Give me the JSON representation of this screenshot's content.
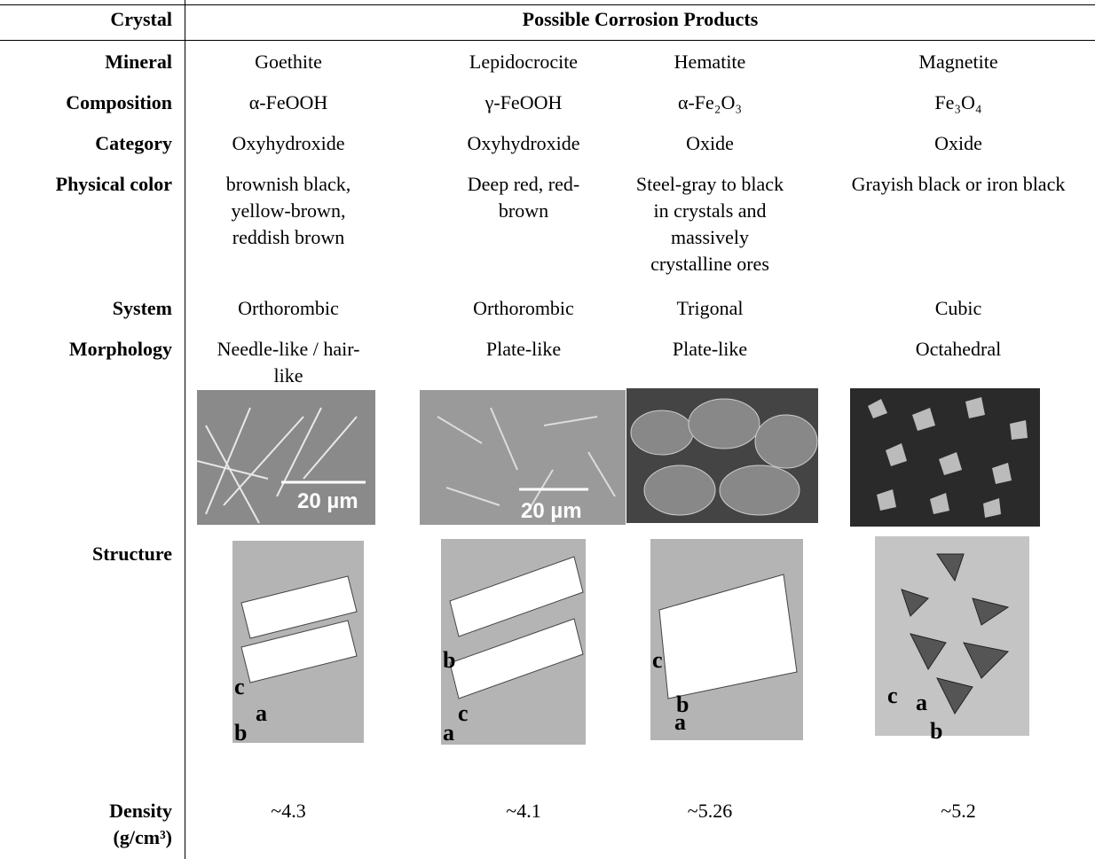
{
  "table": {
    "header": [
      "Crystal",
      "Possible Corrosion Products"
    ],
    "rows": [
      {
        "label": "Mineral",
        "cells": [
          "Goethite",
          "Lepidocrocite",
          "Hematite",
          "Magnetite"
        ]
      },
      {
        "label": "Composition",
        "cells": [
          "α-FeOOH",
          "γ-FeOOH",
          "α-Fe₂O₃",
          "Fe₃O₄"
        ]
      },
      {
        "label": "Category",
        "cells": [
          "Oxyhydroxide",
          "Oxyhydroxide",
          "Oxide",
          "Oxide"
        ]
      },
      {
        "label": "Physical color",
        "cells": [
          "brownish black, yellow-brown, reddish brown",
          "Deep red, red-brown",
          "Steel-gray to black in crystals and massively crystalline ores",
          "Grayish black or iron black"
        ]
      },
      {
        "label": "System",
        "cells": [
          "Orthorombic",
          "Orthorombic",
          "Trigonal",
          "Cubic"
        ]
      },
      {
        "label": "Morphology",
        "cells": [
          "Needle-like / hair-like",
          "Plate-like",
          "Plate-like",
          "Octahedral"
        ]
      },
      {
        "label": "Structure"
      },
      {
        "label": "Density (g/cm³)",
        "cells": [
          "~4.3",
          "~4.1",
          "~5.26",
          "~5.2"
        ]
      }
    ],
    "scale_bars": [
      "20 µm",
      "20 µm"
    ],
    "axes": [
      [
        "c",
        "a",
        "b"
      ],
      [
        "b",
        "c",
        "a"
      ],
      [
        "c",
        "b",
        "a"
      ],
      [
        "c",
        "a",
        "b"
      ]
    ]
  }
}
